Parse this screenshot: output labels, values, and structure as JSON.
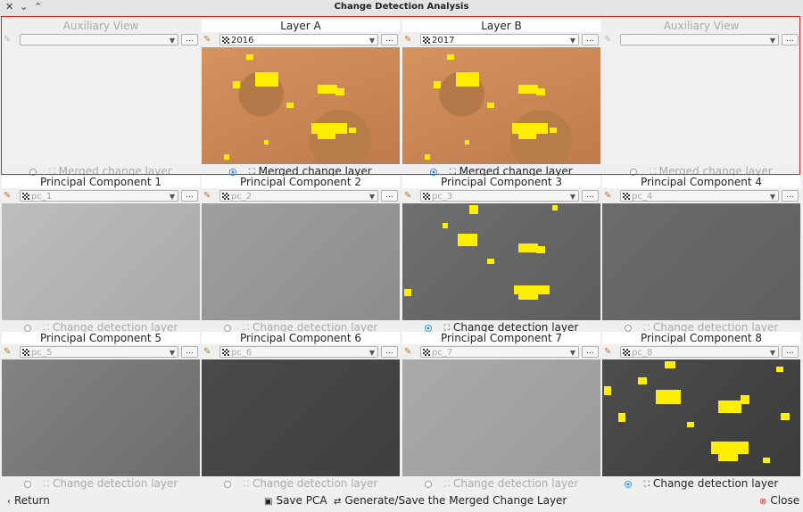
{
  "window": {
    "title": "Change Detection Analysis",
    "controls": [
      "close-icon",
      "minimize-icon",
      "maximize-icon"
    ]
  },
  "row1": [
    {
      "header": "Auxiliary View",
      "combo": "",
      "dots": "...",
      "radio_label": "Merged change layer",
      "selected": false,
      "image": "blank",
      "enabled": false
    },
    {
      "header": "Layer A",
      "combo": "2016",
      "dots": "...",
      "radio_label": "Merged change layer",
      "selected": true,
      "image": "sat",
      "enabled": true
    },
    {
      "header": "Layer B",
      "combo": "2017",
      "dots": "...",
      "radio_label": "Merged change layer",
      "selected": true,
      "image": "sat",
      "enabled": true
    },
    {
      "header": "Auxiliary View",
      "combo": "",
      "dots": "...",
      "radio_label": "Merged change layer",
      "selected": false,
      "image": "blank",
      "enabled": false
    }
  ],
  "row2": [
    {
      "header": "Principal Component 1",
      "combo": "pc_1",
      "dots": "...",
      "radio_label": "Change detection layer",
      "selected": false,
      "image": "gray1"
    },
    {
      "header": "Principal Component 2",
      "combo": "pc_2",
      "dots": "...",
      "radio_label": "Change detection layer",
      "selected": false,
      "image": "gray2"
    },
    {
      "header": "Principal Component 3",
      "combo": "pc_3",
      "dots": "...",
      "radio_label": "Change detection layer",
      "selected": true,
      "image": "gray3"
    },
    {
      "header": "Principal Component 4",
      "combo": "pc_4",
      "dots": "...",
      "radio_label": "Change detection layer",
      "selected": false,
      "image": "gray4"
    }
  ],
  "row3": [
    {
      "header": "Principal Component 5",
      "combo": "pc_5",
      "dots": "...",
      "radio_label": "Change detection layer",
      "selected": false,
      "image": "gray5"
    },
    {
      "header": "Principal Component 6",
      "combo": "pc_6",
      "dots": "...",
      "radio_label": "Change detection layer",
      "selected": false,
      "image": "gray6"
    },
    {
      "header": "Principal Component 7",
      "combo": "pc_7",
      "dots": "...",
      "radio_label": "Change detection layer",
      "selected": false,
      "image": "gray7"
    },
    {
      "header": "Principal Component 8",
      "combo": "pc_8",
      "dots": "...",
      "radio_label": "Change detection layer",
      "selected": true,
      "image": "gray8"
    }
  ],
  "bottom": {
    "return_label": "Return",
    "save_pca_label": "Save PCA",
    "generate_label": "Generate/Save the Merged Change Layer",
    "close_label": "Close"
  },
  "colors": {
    "change_mask": "#ffee00",
    "selection_border": "#dd2222",
    "radio_on": "#3a8fd8"
  }
}
